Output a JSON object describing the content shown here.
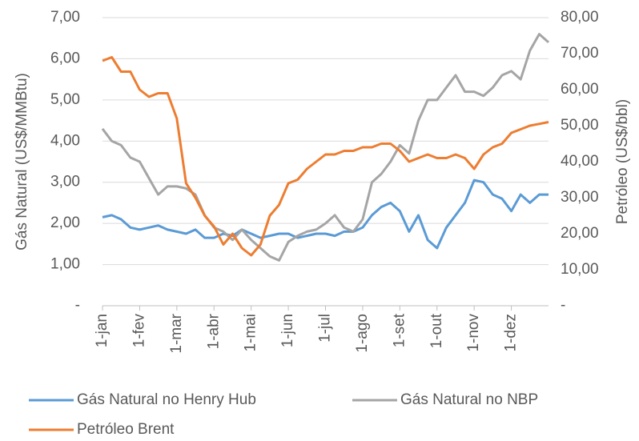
{
  "chart_data": {
    "type": "line",
    "y_label": "Gás Natural (US$/MMBtu)",
    "y2_label": "Petróleo (US$/bbl)",
    "categories": [
      "1-jan",
      null,
      null,
      null,
      "1-fev",
      null,
      null,
      null,
      "1-mar",
      null,
      null,
      null,
      "1-abr",
      null,
      null,
      null,
      "1-mai",
      null,
      null,
      null,
      "1-jun",
      null,
      null,
      null,
      "1-jul",
      null,
      null,
      null,
      "1-ago",
      null,
      null,
      null,
      "1-set",
      null,
      null,
      null,
      "1-out",
      null,
      null,
      null,
      "1-nov",
      null,
      null,
      null,
      "1-dez",
      null,
      null,
      null,
      null
    ],
    "series": [
      {
        "name": "Gás Natural no Henry Hub",
        "color": "#5b9bd5",
        "values": [
          2.15,
          2.2,
          2.1,
          1.9,
          1.85,
          1.9,
          1.95,
          1.85,
          1.8,
          1.75,
          1.85,
          1.65,
          1.65,
          1.75,
          1.7,
          1.85,
          1.75,
          1.65,
          1.7,
          1.75,
          1.75,
          1.65,
          1.7,
          1.75,
          1.75,
          1.7,
          1.8,
          1.8,
          1.9,
          2.2,
          2.4,
          2.5,
          2.3,
          1.8,
          2.2,
          1.6,
          1.4,
          1.9,
          2.2,
          2.5,
          3.05,
          3.0,
          2.7,
          2.6,
          2.3,
          2.7,
          2.5,
          2.7,
          2.7
        ]
      },
      {
        "name": "Gás Natural no NBP",
        "color": "#a5a5a5",
        "values": [
          4.3,
          4.0,
          3.9,
          3.6,
          3.5,
          3.1,
          2.7,
          2.9,
          2.9,
          2.85,
          2.7,
          2.2,
          1.9,
          1.8,
          1.6,
          1.85,
          1.6,
          1.4,
          1.2,
          1.1,
          1.55,
          1.7,
          1.8,
          1.85,
          2.0,
          2.2,
          1.9,
          1.8,
          2.1,
          3.0,
          3.2,
          3.5,
          3.9,
          3.7,
          4.5,
          5.0,
          5.0,
          5.3,
          5.6,
          5.2,
          5.2,
          5.1,
          5.3,
          5.6,
          5.7,
          5.5,
          6.2,
          6.6,
          6.4
        ]
      },
      {
        "name": "Petróleo Brent",
        "color": "#ed7d31",
        "axis": "y2",
        "values": [
          68,
          69,
          65,
          65,
          60,
          58,
          59,
          59,
          52,
          34,
          30,
          25,
          22,
          17,
          20,
          16,
          14,
          17,
          25,
          28,
          34,
          35,
          38,
          40,
          42,
          42,
          43,
          43,
          44,
          44,
          45,
          45,
          43,
          40,
          41,
          42,
          41,
          41,
          42,
          41,
          38,
          42,
          44,
          45,
          48,
          49,
          50,
          50.5,
          51
        ]
      }
    ],
    "ylim": [
      0,
      7
    ],
    "yticks": [
      {
        "value": 0,
        "label": "-"
      },
      {
        "value": 1,
        "label": "1,00"
      },
      {
        "value": 2,
        "label": "2,00"
      },
      {
        "value": 3,
        "label": "3,00"
      },
      {
        "value": 4,
        "label": "4,00"
      },
      {
        "value": 5,
        "label": "5,00"
      },
      {
        "value": 6,
        "label": "6,00"
      },
      {
        "value": 7,
        "label": "7,00"
      }
    ],
    "y2lim": [
      0,
      80
    ],
    "y2ticks": [
      {
        "value": 0,
        "label": "-"
      },
      {
        "value": 10,
        "label": "10,00"
      },
      {
        "value": 20,
        "label": "20,00"
      },
      {
        "value": 30,
        "label": "30,00"
      },
      {
        "value": 40,
        "label": "40,00"
      },
      {
        "value": 50,
        "label": "50,00"
      },
      {
        "value": 60,
        "label": "60,00"
      },
      {
        "value": 70,
        "label": "70,00"
      },
      {
        "value": 80,
        "label": "80,00"
      }
    ],
    "grid": true
  }
}
